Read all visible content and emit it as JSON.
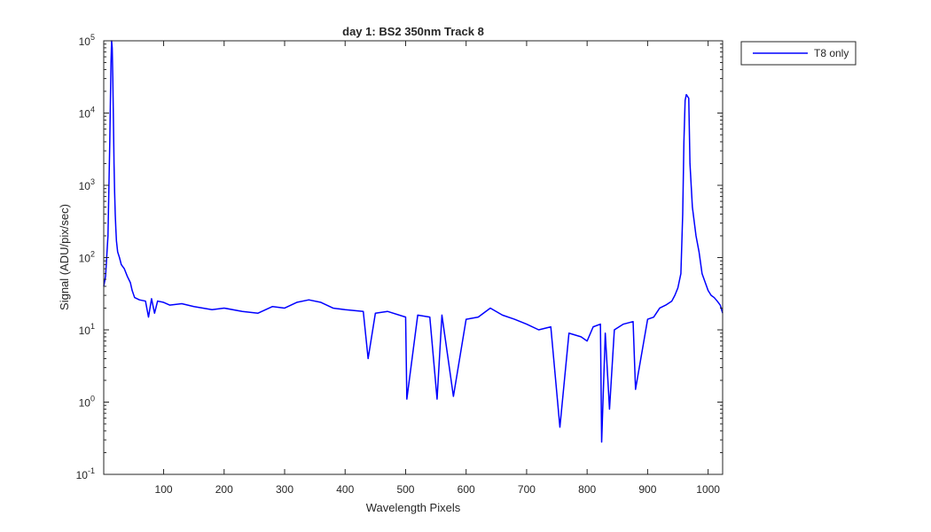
{
  "chart_data": {
    "type": "line",
    "title": "day 1: BS2  350nm  Track 8",
    "xlabel": "Wavelength Pixels",
    "ylabel": "Signal (ADU/pix/sec)",
    "xlim": [
      1,
      1024
    ],
    "ylim": [
      0.1,
      100000
    ],
    "yscale": "log",
    "grid": false,
    "legend_position": "outside-top-right",
    "x_ticks": [
      100,
      200,
      300,
      400,
      500,
      600,
      700,
      800,
      900,
      1000
    ],
    "y_ticks": [
      {
        "value": 0.1,
        "base": "10",
        "exp": "-1"
      },
      {
        "value": 1,
        "base": "10",
        "exp": "0"
      },
      {
        "value": 10,
        "base": "10",
        "exp": "1"
      },
      {
        "value": 100,
        "base": "10",
        "exp": "2"
      },
      {
        "value": 1000,
        "base": "10",
        "exp": "3"
      },
      {
        "value": 10000,
        "base": "10",
        "exp": "4"
      },
      {
        "value": 100000,
        "base": "10",
        "exp": "5"
      }
    ],
    "series": [
      {
        "name": "T8 only",
        "color": "#0000ff",
        "x": [
          1,
          4,
          8,
          11,
          13,
          14,
          15,
          16,
          17,
          18,
          19,
          20,
          21,
          22,
          24,
          27,
          30,
          35,
          40,
          45,
          48,
          52,
          60,
          70,
          75,
          80,
          85,
          90,
          100,
          110,
          130,
          150,
          180,
          200,
          230,
          256,
          280,
          300,
          320,
          340,
          360,
          380,
          400,
          430,
          438,
          450,
          470,
          500,
          502,
          520,
          540,
          552,
          560,
          579,
          600,
          620,
          640,
          660,
          680,
          700,
          720,
          740,
          755,
          770,
          790,
          800,
          810,
          822,
          824,
          830,
          837,
          845,
          860,
          876,
          880,
          900,
          910,
          920,
          930,
          940,
          945,
          950,
          955,
          958,
          960,
          962,
          964,
          966,
          968,
          970,
          974,
          980,
          985,
          990,
          1000,
          1005,
          1010,
          1015,
          1020,
          1024
        ],
        "y": [
          40,
          55,
          200,
          4000,
          50000,
          100000,
          80000,
          30000,
          8000,
          2000,
          800,
          400,
          250,
          170,
          120,
          100,
          80,
          70,
          55,
          45,
          35,
          28,
          26,
          25,
          15,
          27,
          17,
          25,
          24,
          22,
          23,
          21,
          19,
          20,
          18,
          17,
          21,
          20,
          24,
          26,
          24,
          20,
          19,
          18,
          4,
          17,
          18,
          15,
          1.1,
          16,
          15,
          1.1,
          16,
          1.2,
          14,
          15,
          20,
          16,
          14,
          12,
          10,
          11,
          0.45,
          9,
          8,
          7,
          11,
          12,
          0.28,
          9,
          0.8,
          10,
          12,
          13,
          1.5,
          14,
          15,
          20,
          22,
          25,
          30,
          38,
          60,
          400,
          4000,
          15000,
          18000,
          17000,
          16000,
          2000,
          500,
          200,
          120,
          60,
          35,
          30,
          28,
          25,
          22,
          17
        ]
      }
    ]
  }
}
